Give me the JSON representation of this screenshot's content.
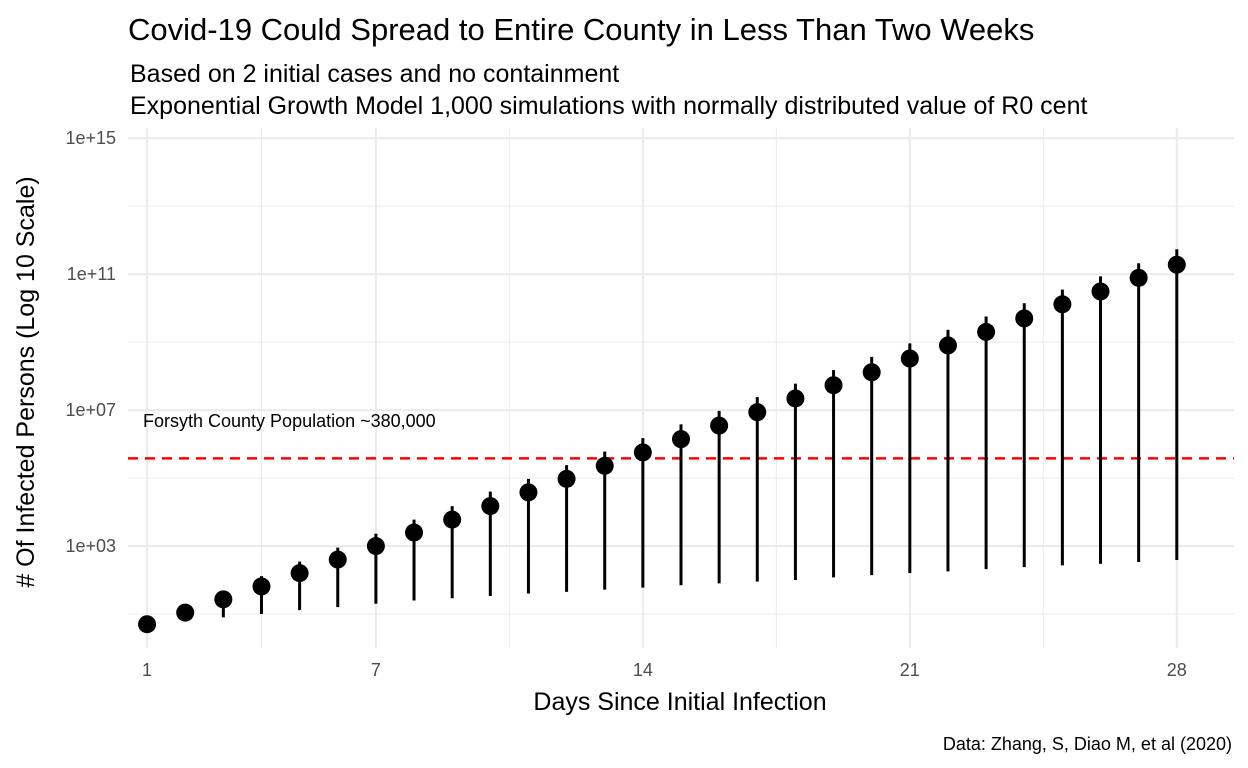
{
  "chart_data": {
    "type": "scatter",
    "title": "Covid-19 Could Spread to Entire County in Less Than Two Weeks",
    "subtitle_lines": [
      "Based on 2 initial cases and no containment",
      "Exponential Growth Model 1,000 simulations with normally distributed value of R0 cent"
    ],
    "xlabel": "Days Since Initial Infection",
    "ylabel": "# Of Infected Persons (Log 10 Scale)",
    "caption": "Data: Zhang, S, Diao M, et al (2020)",
    "x_scale": "linear",
    "y_scale": "log10",
    "xlim": [
      0.5,
      29.5
    ],
    "ylim": [
      1,
      2000000000000000.0
    ],
    "x_ticks": [
      1,
      7,
      14,
      21,
      28
    ],
    "x_tick_labels": [
      "1",
      "7",
      "14",
      "21",
      "28"
    ],
    "y_ticks": [
      1000,
      10000000,
      100000000000,
      1000000000000000
    ],
    "y_tick_labels": [
      "1e+03",
      "1e+07",
      "1e+11",
      "1e+15"
    ],
    "grid": true,
    "point_color": "#000000",
    "range_color": "#000000",
    "series": [
      {
        "x": [
          1,
          2,
          3,
          4,
          5,
          6,
          7,
          8,
          9,
          10,
          11,
          12,
          13,
          14,
          15,
          16,
          17,
          18,
          19,
          20,
          21,
          22,
          23,
          24,
          25,
          26,
          27,
          28
        ],
        "y": [
          5,
          11,
          27,
          65,
          160,
          400,
          1000,
          2500,
          6000,
          15000,
          38000,
          95000,
          230000,
          570000,
          1400000,
          3500000,
          8700000,
          22000000,
          54000000,
          130000000,
          330000000,
          800000000,
          2000000000,
          5000000000,
          13000000000,
          31000000000,
          78000000000,
          190000000000
        ],
        "ymin": [
          4,
          6,
          8,
          10,
          13,
          16,
          20,
          25,
          29,
          34,
          40,
          45,
          52,
          60,
          70,
          80,
          90,
          100,
          120,
          140,
          160,
          180,
          210,
          240,
          270,
          300,
          340,
          390
        ],
        "ymax": [
          6,
          17,
          47,
          130,
          350,
          900,
          2300,
          6000,
          15000,
          40000,
          95000,
          240000,
          600000,
          1500000,
          3800000,
          9500000,
          24000000,
          60000000,
          150000000,
          370000000,
          920000000,
          2300000000,
          5700000000,
          14000000000,
          35000000000,
          86000000000,
          210000000000,
          540000000000
        ]
      }
    ],
    "reference_line": {
      "y": 380000,
      "label": "Forsyth County Population ~380,000",
      "color": "#ff0000",
      "style": "dashed"
    }
  }
}
